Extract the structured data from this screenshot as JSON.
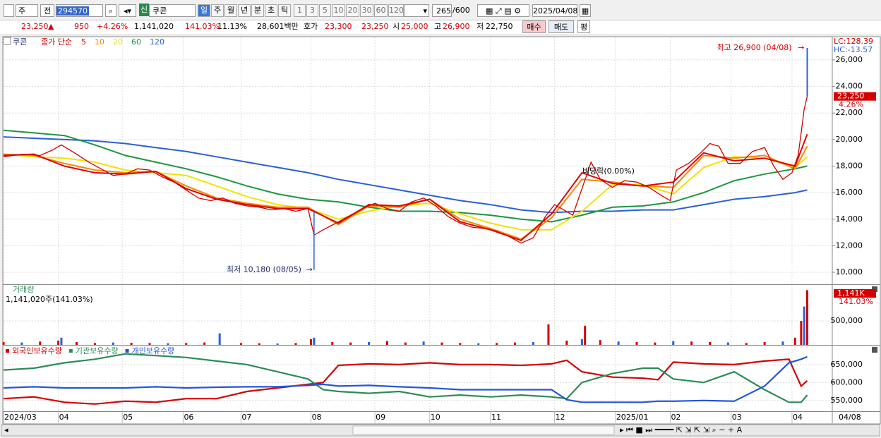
{
  "toolbar": {
    "market": "주",
    "mode": "전",
    "code": "294570",
    "badge": "신",
    "name": "쿠콘",
    "periods": [
      "일",
      "주",
      "월",
      "년",
      "분",
      "초",
      "틱"
    ],
    "minutes": [
      "1",
      "3",
      "5",
      "10",
      "20",
      "30",
      "60",
      "120"
    ],
    "count": "265",
    "total": "/600",
    "date": "2025/04/08"
  },
  "quote": {
    "price": "23,250",
    "arrow": "▲",
    "change": "950",
    "rate": "+4.26%",
    "volume": "1,141,020",
    "vol_ratio": "141.03%",
    "turnover": "11.13%",
    "amount": "28,601백만",
    "ask_label": "호가",
    "ask": "23,300",
    "bid": "23,250",
    "open_label": "시",
    "open": "25,000",
    "high_label": "고",
    "high": "26,900",
    "low_label": "저",
    "low": "22,750",
    "buttons": [
      "매수",
      "매도",
      "평"
    ]
  },
  "chart_data": [
    {
      "type": "line",
      "title": "쿠콘",
      "legend_prefix": "종가 단순",
      "xlim": [
        0,
        272
      ],
      "ylim": [
        9100,
        27750
      ],
      "yticks": [
        {
          "value": 10000,
          "label": "10,000"
        },
        {
          "value": 12000,
          "label": "12,000"
        },
        {
          "value": 14000,
          "label": "14,000"
        },
        {
          "value": 16000,
          "label": "16,000"
        },
        {
          "value": 18000,
          "label": "18,000"
        },
        {
          "value": 20000,
          "label": "20,000"
        },
        {
          "value": 22000,
          "label": "22,000"
        },
        {
          "value": 24000,
          "label": "24,000"
        },
        {
          "value": 26000,
          "label": "26,000"
        }
      ],
      "close": {
        "color": "#d40000",
        "x": [
          0,
          6,
          12,
          16,
          19,
          24,
          28,
          32,
          36,
          40,
          44,
          48,
          52,
          56,
          60,
          64,
          68,
          72,
          76,
          80,
          84,
          88,
          92,
          96,
          100,
          102,
          105,
          110,
          114,
          118,
          122,
          126,
          130,
          134,
          138,
          142,
          146,
          150,
          154,
          158,
          162,
          166,
          170,
          174,
          178,
          181,
          184,
          187,
          190,
          193,
          196,
          200,
          204,
          208,
          212,
          216,
          219,
          221,
          225,
          229,
          232,
          235,
          238,
          242,
          246,
          250,
          253,
          256,
          259,
          261,
          262,
          263,
          264
        ],
        "values": [
          18700,
          18900,
          18800,
          19200,
          19600,
          18900,
          18300,
          17800,
          17300,
          17400,
          17800,
          17700,
          17200,
          16800,
          16200,
          15600,
          15400,
          15600,
          15200,
          15000,
          14900,
          14700,
          14800,
          14600,
          14800,
          12800,
          13200,
          13800,
          14300,
          14800,
          15200,
          14800,
          14600,
          15300,
          15600,
          15000,
          14200,
          13700,
          13400,
          13300,
          13100,
          12700,
          12200,
          12600,
          14200,
          15100,
          14700,
          14300,
          16300,
          18300,
          17000,
          16400,
          16900,
          16800,
          16400,
          15800,
          15400,
          17700,
          18200,
          19000,
          19700,
          19500,
          18200,
          18200,
          19100,
          19400,
          18000,
          17000,
          17500,
          18800,
          20500,
          22300,
          23250
        ]
      },
      "ma_x": [
        0,
        10,
        20,
        30,
        40,
        50,
        60,
        70,
        80,
        90,
        100,
        110,
        120,
        130,
        140,
        150,
        160,
        170,
        180,
        190,
        200,
        210,
        220,
        230,
        240,
        250,
        260,
        264
      ],
      "series": [
        {
          "name": "5",
          "color": "#e00000",
          "values": [
            18800,
            18900,
            18000,
            17500,
            17400,
            17600,
            16300,
            15500,
            15100,
            14800,
            14800,
            13700,
            15100,
            15000,
            15500,
            13800,
            13200,
            12400,
            14400,
            17500,
            16700,
            16500,
            16800,
            19000,
            18400,
            18600,
            18000,
            20400
          ]
        },
        {
          "name": "10",
          "color": "#f08c00",
          "values": [
            18900,
            18800,
            18200,
            17700,
            17500,
            17600,
            16500,
            15600,
            15200,
            14900,
            14900,
            13600,
            15000,
            14900,
            15500,
            14000,
            13300,
            12500,
            14100,
            17000,
            16800,
            16500,
            16400,
            18800,
            18600,
            18800,
            17800,
            19500
          ]
        },
        {
          "name": "20",
          "color": "#f2e200",
          "values": [
            18900,
            18700,
            18600,
            18300,
            17700,
            17500,
            17300,
            16500,
            15700,
            15100,
            14800,
            14000,
            14600,
            15000,
            15200,
            14400,
            13700,
            13200,
            13200,
            14600,
            16600,
            16600,
            15900,
            17900,
            18700,
            18600,
            17900,
            18700
          ]
        },
        {
          "name": "60",
          "color": "#1e9640",
          "values": [
            20700,
            20500,
            20300,
            19600,
            18800,
            18300,
            17800,
            17200,
            16500,
            15900,
            15500,
            15300,
            14900,
            14600,
            14600,
            14500,
            14300,
            14000,
            13800,
            14300,
            14900,
            15000,
            15300,
            16000,
            16900,
            17400,
            17800,
            18000
          ]
        },
        {
          "name": "120",
          "color": "#2a5fd8",
          "values": [
            20200,
            20100,
            20000,
            19900,
            19700,
            19400,
            19100,
            18700,
            18300,
            17900,
            17500,
            17000,
            16600,
            16200,
            15800,
            15400,
            15100,
            14700,
            14500,
            14600,
            14600,
            14700,
            14700,
            15100,
            15500,
            15700,
            16000,
            16200
          ]
        }
      ],
      "high": {
        "x": 264,
        "value": 26900,
        "label": "최고 26,900 (04/08)"
      },
      "low": {
        "x": 102,
        "value": 10180,
        "label": "최저 10,180 (08/05)"
      },
      "annotation": "비당락(0.00%)",
      "lc": "LC:128.39",
      "hc": "HC:-13.57",
      "last_label": "23,250",
      "last_rate": "4.26%"
    },
    {
      "type": "bar",
      "title": "거래량",
      "subtitle": "1,141,020주(141.03%)",
      "color": "#d40000",
      "xlim": [
        0,
        272
      ],
      "ylim": [
        0,
        1250000
      ],
      "yticks": [
        {
          "value": 500000,
          "label": "500,000"
        }
      ],
      "x": [
        0,
        6,
        12,
        18,
        19,
        24,
        30,
        36,
        42,
        48,
        54,
        60,
        66,
        71,
        78,
        84,
        90,
        96,
        101,
        102,
        108,
        114,
        120,
        126,
        132,
        138,
        144,
        150,
        156,
        162,
        168,
        174,
        179,
        185,
        190,
        191,
        196,
        202,
        208,
        214,
        220,
        226,
        232,
        238,
        244,
        250,
        256,
        260,
        262,
        263,
        264
      ],
      "values": [
        60000,
        50000,
        70000,
        90000,
        150000,
        60000,
        40000,
        50000,
        45000,
        40000,
        35000,
        40000,
        50000,
        240000,
        40000,
        35000,
        30000,
        40000,
        120000,
        150000,
        60000,
        50000,
        60000,
        80000,
        50000,
        70000,
        50000,
        40000,
        35000,
        40000,
        50000,
        60000,
        430000,
        90000,
        120000,
        400000,
        100000,
        70000,
        60000,
        50000,
        80000,
        70000,
        60000,
        50000,
        40000,
        60000,
        70000,
        150000,
        500000,
        800000,
        1141020
      ],
      "last_label": "1,141K",
      "last_rate": "141.03%"
    },
    {
      "type": "line",
      "xlim": [
        0,
        272
      ],
      "ylim": [
        520000,
        703000
      ],
      "yticks": [
        {
          "value": 550000,
          "label": "550,000"
        },
        {
          "value": 600000,
          "label": "600,000"
        },
        {
          "value": 650000,
          "label": "650,000"
        }
      ],
      "xticks": [
        {
          "value": 0,
          "label": "2024/03"
        },
        {
          "value": 18,
          "label": "04"
        },
        {
          "value": 39,
          "label": "05"
        },
        {
          "value": 59,
          "label": "06"
        },
        {
          "value": 78,
          "label": "07"
        },
        {
          "value": 101,
          "label": "08"
        },
        {
          "value": 122,
          "label": "09"
        },
        {
          "value": 140,
          "label": "10"
        },
        {
          "value": 160,
          "label": "11"
        },
        {
          "value": 181,
          "label": "12"
        },
        {
          "value": 201,
          "label": "2025/01"
        },
        {
          "value": 219,
          "label": "02"
        },
        {
          "value": 239,
          "label": "03"
        },
        {
          "value": 259,
          "label": "04"
        }
      ],
      "x_end_label": "04/08",
      "x": [
        0,
        10,
        20,
        30,
        40,
        50,
        60,
        70,
        80,
        90,
        100,
        105,
        110,
        120,
        130,
        140,
        150,
        160,
        170,
        180,
        185,
        190,
        200,
        210,
        215,
        220,
        230,
        240,
        250,
        258,
        262,
        264
      ],
      "series": [
        {
          "name": "외국인보유수량",
          "color": "#d40000",
          "values": [
            555000,
            560000,
            545000,
            540000,
            548000,
            545000,
            555000,
            555000,
            575000,
            585000,
            595000,
            600000,
            648000,
            652000,
            650000,
            655000,
            650000,
            650000,
            648000,
            652000,
            662000,
            630000,
            615000,
            612000,
            608000,
            657000,
            652000,
            650000,
            660000,
            665000,
            590000,
            605000
          ]
        },
        {
          "name": "기관보유수량",
          "color": "#2e8b57",
          "values": [
            635000,
            640000,
            655000,
            665000,
            680000,
            675000,
            670000,
            660000,
            650000,
            630000,
            610000,
            580000,
            575000,
            570000,
            575000,
            560000,
            565000,
            560000,
            565000,
            560000,
            555000,
            600000,
            625000,
            640000,
            640000,
            610000,
            600000,
            630000,
            580000,
            545000,
            545000,
            565000
          ]
        },
        {
          "name": "개인보유수량",
          "color": "#2255dd",
          "values": [
            585000,
            588000,
            585000,
            585000,
            585000,
            588000,
            585000,
            587000,
            588000,
            588000,
            592000,
            595000,
            590000,
            592000,
            588000,
            585000,
            580000,
            580000,
            580000,
            580000,
            552000,
            545000,
            545000,
            545000,
            548000,
            548000,
            550000,
            548000,
            590000,
            655000,
            665000,
            672000
          ]
        }
      ]
    }
  ]
}
